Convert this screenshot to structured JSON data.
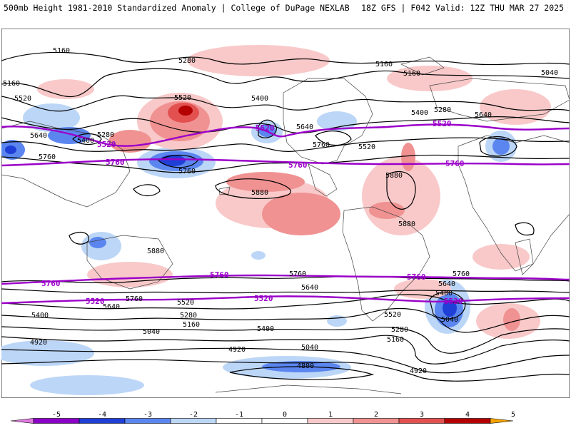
{
  "header": {
    "left": "500mb Height 1981-2010 Standardized Anomaly | College of DuPage NEXLAB",
    "right": "18Z GFS | F042 Valid: 12Z THU MAR 27 2025"
  },
  "colors": {
    "contour_black": "#000000",
    "contour_purple": "#9b00c9",
    "neg5": "#e07ae0",
    "neg4": "#8a00c8",
    "neg3": "#1f3fd6",
    "neg2": "#5b86ef",
    "neg1": "#bcd6f7",
    "pos1": "#f9c9c9",
    "pos2": "#f09292",
    "pos3": "#e35050",
    "pos4": "#b40000",
    "pos5": "#f4a300"
  },
  "contour_labels": {
    "black": [
      "5160",
      "5160",
      "5520",
      "5640",
      "5760",
      "5280",
      "5400",
      "5520",
      "5400",
      "5160",
      "5640",
      "5760",
      "5280",
      "5160",
      "5400",
      "5280",
      "5640",
      "5040",
      "5880",
      "5880",
      "5880",
      "5880",
      "5760",
      "5760",
      "5640",
      "5520",
      "5400",
      "5280",
      "5160",
      "5040",
      "4920",
      "4920",
      "4800",
      "5040",
      "5400",
      "5520",
      "5640",
      "5760",
      "5640",
      "5400",
      "5040",
      "5280",
      "5160",
      "4920",
      "5880",
      "5760",
      "5640",
      "5520"
    ],
    "purple": [
      "5520",
      "5760",
      "5520",
      "5760",
      "5520",
      "5760",
      "5760",
      "5520",
      "5760",
      "5520",
      "5760",
      "5520",
      "5520"
    ]
  },
  "colorbar": {
    "ticks": [
      "-5",
      "-4",
      "-3",
      "-2",
      "-1",
      "0",
      "1",
      "2",
      "3",
      "4",
      "5"
    ],
    "colors": [
      "#e07ae0",
      "#8a00c8",
      "#1f3fd6",
      "#5b86ef",
      "#bcd6f7",
      "#ffffff",
      "#ffffff",
      "#f9c9c9",
      "#f09292",
      "#e35050",
      "#b40000",
      "#f4a300"
    ]
  }
}
